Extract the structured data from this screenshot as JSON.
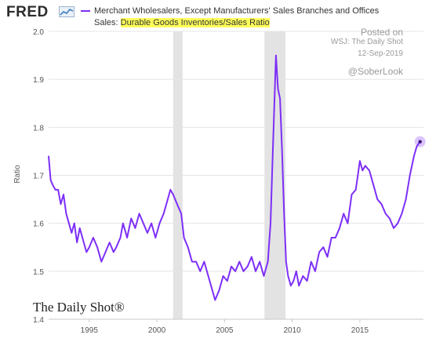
{
  "header": {
    "logo": "FRED",
    "legend_prefix": "Merchant Wholesalers, Except Manufacturers' Sales Branches and Offices Sales: ",
    "legend_highlight": "Durable Goods Inventories/Sales Ratio",
    "series_color": "#7d2ff7",
    "highlight_color": "#ffff5a"
  },
  "watermark": {
    "line1": "Posted on",
    "line2": "WSJ: The Daily Shot",
    "line3": "12-Sep-2019",
    "line4": "@SoberLook"
  },
  "footer_logo": "The Daily Shot®",
  "chart_data": {
    "type": "line",
    "ylabel": "Ratio",
    "ylim": [
      1.4,
      2.0
    ],
    "yticks": [
      1.4,
      1.5,
      1.6,
      1.7,
      1.8,
      1.9,
      2.0
    ],
    "ytick_labels": [
      "1.4",
      "1.5",
      "1.6",
      "1.7",
      "1.8",
      "1.9",
      "2.0"
    ],
    "xlim": [
      1992.0,
      2019.7
    ],
    "xticks": [
      1995,
      2000,
      2005,
      2010,
      2015
    ],
    "xtick_labels": [
      "1995",
      "2000",
      "2005",
      "2010",
      "2015"
    ],
    "grid": true,
    "recessions": [
      [
        2001.2,
        2001.9
      ],
      [
        2007.95,
        2009.5
      ]
    ],
    "last_point_marker": true,
    "series": [
      {
        "x": [
          1992.0,
          1992.15,
          1992.3,
          1992.5,
          1992.7,
          1992.9,
          1993.1,
          1993.3,
          1993.5,
          1993.7,
          1993.9,
          1994.1,
          1994.3,
          1994.5,
          1994.8,
          1995.0,
          1995.3,
          1995.6,
          1995.9,
          1996.2,
          1996.5,
          1996.8,
          1997.0,
          1997.3,
          1997.5,
          1997.8,
          1998.1,
          1998.4,
          1998.7,
          1999.0,
          1999.3,
          1999.6,
          1999.9,
          2000.2,
          2000.5,
          2000.8,
          2001.0,
          2001.2,
          2001.5,
          2001.8,
          2002.0,
          2002.3,
          2002.6,
          2002.9,
          2003.2,
          2003.5,
          2003.8,
          2004.0,
          2004.3,
          2004.6,
          2004.9,
          2005.2,
          2005.5,
          2005.8,
          2006.1,
          2006.4,
          2006.7,
          2007.0,
          2007.3,
          2007.6,
          2007.9,
          2008.2,
          2008.4,
          2008.6,
          2008.8,
          2008.95,
          2009.1,
          2009.25,
          2009.4,
          2009.55,
          2009.7,
          2009.9,
          2010.1,
          2010.3,
          2010.5,
          2010.8,
          2011.1,
          2011.4,
          2011.7,
          2012.0,
          2012.3,
          2012.6,
          2012.9,
          2013.2,
          2013.5,
          2013.8,
          2014.1,
          2014.4,
          2014.7,
          2015.0,
          2015.2,
          2015.4,
          2015.7,
          2016.0,
          2016.3,
          2016.6,
          2016.9,
          2017.2,
          2017.5,
          2017.8,
          2018.1,
          2018.4,
          2018.7,
          2019.0,
          2019.2,
          2019.45
        ],
        "values": [
          1.74,
          1.69,
          1.68,
          1.67,
          1.67,
          1.64,
          1.66,
          1.62,
          1.6,
          1.58,
          1.6,
          1.56,
          1.59,
          1.57,
          1.54,
          1.55,
          1.57,
          1.55,
          1.52,
          1.54,
          1.56,
          1.54,
          1.55,
          1.57,
          1.6,
          1.57,
          1.61,
          1.59,
          1.62,
          1.6,
          1.58,
          1.6,
          1.57,
          1.6,
          1.62,
          1.65,
          1.67,
          1.66,
          1.64,
          1.62,
          1.57,
          1.55,
          1.52,
          1.52,
          1.5,
          1.52,
          1.49,
          1.47,
          1.44,
          1.46,
          1.49,
          1.48,
          1.51,
          1.5,
          1.52,
          1.5,
          1.51,
          1.53,
          1.5,
          1.52,
          1.49,
          1.52,
          1.6,
          1.78,
          1.95,
          1.88,
          1.86,
          1.75,
          1.62,
          1.52,
          1.49,
          1.47,
          1.48,
          1.5,
          1.47,
          1.49,
          1.48,
          1.52,
          1.5,
          1.54,
          1.55,
          1.53,
          1.57,
          1.57,
          1.59,
          1.62,
          1.6,
          1.66,
          1.67,
          1.73,
          1.71,
          1.72,
          1.71,
          1.68,
          1.65,
          1.64,
          1.62,
          1.61,
          1.59,
          1.6,
          1.62,
          1.65,
          1.7,
          1.74,
          1.76,
          1.77
        ]
      }
    ]
  }
}
